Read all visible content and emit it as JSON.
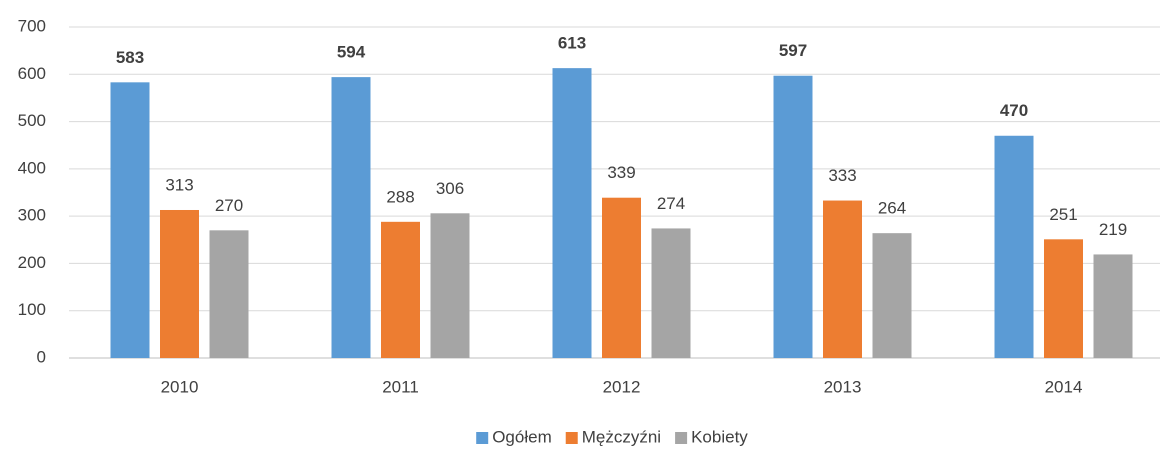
{
  "chart_data": {
    "type": "bar",
    "categories": [
      "2010",
      "2011",
      "2012",
      "2013",
      "2014"
    ],
    "series": [
      {
        "name": "Ogółem",
        "color": "#5b9bd5",
        "values": [
          583,
          594,
          613,
          597,
          470
        ]
      },
      {
        "name": "Mężczyźni",
        "color": "#ed7d31",
        "values": [
          313,
          288,
          339,
          333,
          251
        ]
      },
      {
        "name": "Kobiety",
        "color": "#a5a5a5",
        "values": [
          270,
          306,
          274,
          264,
          219
        ]
      }
    ],
    "ylim": [
      0,
      700
    ],
    "yticks": [
      0,
      100,
      200,
      300,
      400,
      500,
      600,
      700
    ],
    "grid": true,
    "legend": "bottom"
  }
}
